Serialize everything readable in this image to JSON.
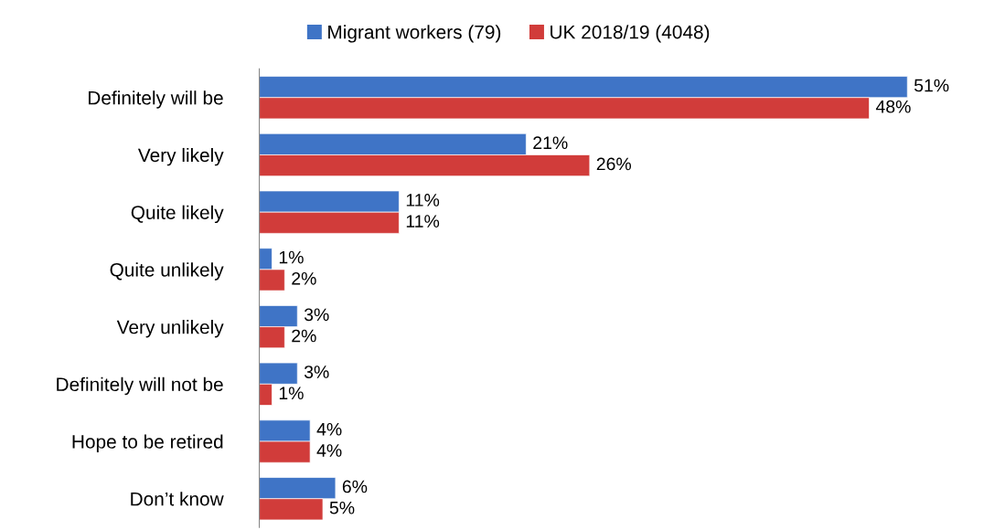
{
  "chart_data": {
    "type": "bar",
    "orientation": "horizontal",
    "legend": "top",
    "grid": false,
    "tick_labels": "y",
    "categories": [
      "Definitely will be",
      "Very likely",
      "Quite likely",
      "Quite unlikely",
      "Very unlikely",
      "Definitely will not be",
      "Hope to be retired",
      "Don’t know"
    ],
    "series": [
      {
        "name": "Migrant workers (79)",
        "color": "#3f74c6",
        "values": [
          51,
          21,
          11,
          1,
          3,
          3,
          4,
          6
        ],
        "value_labels": [
          "51%",
          "21%",
          "11%",
          "1%",
          "3%",
          "3%",
          "4%",
          "6%"
        ]
      },
      {
        "name": "UK 2018/19 (4048)",
        "color": "#d13c3a",
        "values": [
          48,
          26,
          11,
          2,
          2,
          1,
          4,
          5
        ],
        "value_labels": [
          "48%",
          "26%",
          "11%",
          "2%",
          "2%",
          "1%",
          "4%",
          "5%"
        ]
      }
    ]
  }
}
